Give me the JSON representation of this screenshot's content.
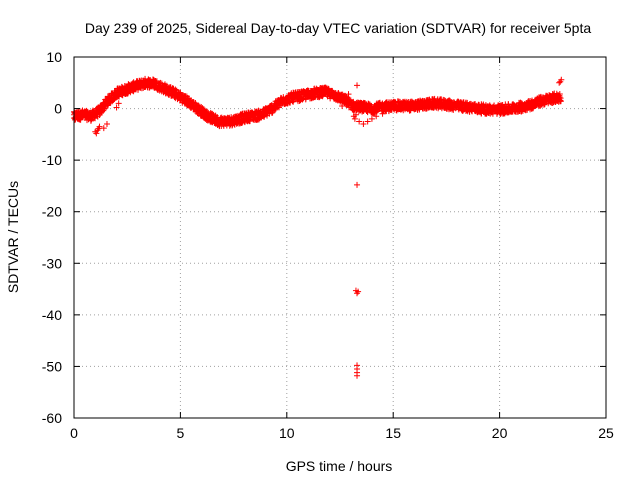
{
  "chart_data": {
    "type": "scatter",
    "title": "Day 239 of 2025, Sidereal Day-to-day VTEC variation (SDTVAR) for receiver 5pta",
    "xlabel": "GPS time / hours",
    "ylabel": "SDTVAR / TECUs",
    "xlim": [
      0,
      25
    ],
    "ylim": [
      -60,
      10
    ],
    "x_ticks": [
      0,
      5,
      10,
      15,
      20,
      25
    ],
    "y_ticks": [
      -60,
      -50,
      -40,
      -30,
      -20,
      -10,
      0,
      10
    ],
    "grid": true,
    "marker": "+",
    "series_color": "#ff0000",
    "trace_knots": [
      [
        0.0,
        -1.5
      ],
      [
        0.4,
        -1.2
      ],
      [
        0.8,
        -1.5
      ],
      [
        1.2,
        -0.5
      ],
      [
        1.6,
        1.5
      ],
      [
        2.0,
        3.0
      ],
      [
        2.5,
        3.8
      ],
      [
        3.0,
        4.5
      ],
      [
        3.4,
        5.0
      ],
      [
        3.8,
        4.8
      ],
      [
        4.3,
        3.8
      ],
      [
        4.8,
        2.8
      ],
      [
        5.3,
        1.5
      ],
      [
        5.8,
        0.0
      ],
      [
        6.3,
        -1.5
      ],
      [
        6.8,
        -2.5
      ],
      [
        7.3,
        -2.5
      ],
      [
        7.8,
        -2.0
      ],
      [
        8.3,
        -1.5
      ],
      [
        8.8,
        -1.2
      ],
      [
        9.3,
        0.0
      ],
      [
        9.8,
        1.5
      ],
      [
        10.3,
        2.2
      ],
      [
        10.8,
        2.5
      ],
      [
        11.3,
        3.0
      ],
      [
        11.8,
        3.2
      ],
      [
        12.3,
        2.5
      ],
      [
        12.8,
        1.5
      ],
      [
        13.1,
        0.5
      ],
      [
        13.5,
        0.3
      ],
      [
        14.0,
        0.0
      ],
      [
        14.5,
        0.3
      ],
      [
        15.0,
        0.5
      ],
      [
        15.5,
        0.5
      ],
      [
        16.0,
        0.5
      ],
      [
        16.5,
        0.8
      ],
      [
        17.0,
        1.0
      ],
      [
        17.5,
        0.8
      ],
      [
        18.0,
        0.5
      ],
      [
        18.5,
        0.3
      ],
      [
        19.0,
        0.0
      ],
      [
        19.5,
        -0.2
      ],
      [
        20.0,
        -0.2
      ],
      [
        20.5,
        0.0
      ],
      [
        21.0,
        0.3
      ],
      [
        21.5,
        0.8
      ],
      [
        22.0,
        1.5
      ],
      [
        22.5,
        2.0
      ],
      [
        22.9,
        2.2
      ]
    ],
    "trace_spread": 0.9,
    "isolated_points": [
      [
        0.05,
        -2.2
      ],
      [
        0.1,
        -0.8
      ],
      [
        0.2,
        -1.8
      ],
      [
        1.0,
        -4.5
      ],
      [
        1.05,
        -4.8
      ],
      [
        1.1,
        -4.2
      ],
      [
        1.15,
        -3.9
      ],
      [
        1.2,
        -3.5
      ],
      [
        1.4,
        -3.8
      ],
      [
        1.55,
        -3.0
      ],
      [
        2.0,
        0.2
      ],
      [
        2.1,
        1.0
      ],
      [
        13.1,
        0.0
      ],
      [
        13.15,
        -1.5
      ],
      [
        13.2,
        -2.0
      ],
      [
        13.25,
        -1.2
      ],
      [
        13.3,
        4.5
      ],
      [
        13.3,
        -14.8
      ],
      [
        13.25,
        -35.3
      ],
      [
        13.3,
        -35.8
      ],
      [
        13.35,
        -35.5
      ],
      [
        13.3,
        -49.8
      ],
      [
        13.3,
        -50.5
      ],
      [
        13.3,
        -51.2
      ],
      [
        13.3,
        -51.8
      ],
      [
        13.4,
        -2.5
      ],
      [
        13.6,
        -3.0
      ],
      [
        13.8,
        -2.5
      ],
      [
        14.0,
        -2.0
      ],
      [
        14.2,
        -1.5
      ],
      [
        14.5,
        -1.0
      ],
      [
        14.8,
        -0.5
      ],
      [
        12.6,
        0.5
      ],
      [
        12.8,
        1.0
      ],
      [
        12.9,
        2.8
      ],
      [
        22.8,
        5.0
      ],
      [
        22.9,
        5.6
      ],
      [
        22.85,
        5.2
      ]
    ]
  }
}
